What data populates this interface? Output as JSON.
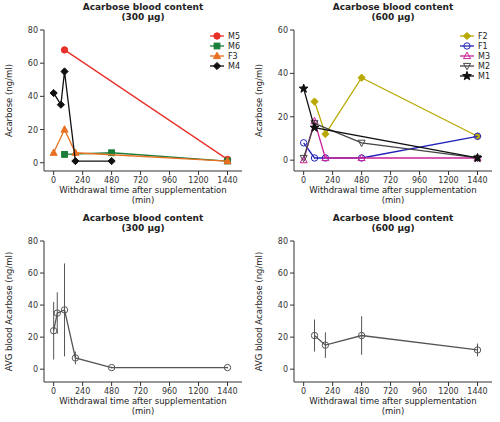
{
  "chart_data": [
    {
      "type": "line",
      "title": "Acarbose blood content\n(300 µg)",
      "x_label": "Withdrawal time after supplementation\n(min)",
      "y_label": "Acarbose (ng/ml)",
      "xlim": [
        -80,
        1560
      ],
      "xticks": [
        0,
        240,
        480,
        720,
        960,
        1200,
        1440
      ],
      "ylim": [
        -5,
        80
      ],
      "yticks": [
        0,
        20,
        40,
        60,
        80
      ],
      "grid": false,
      "legend": "upper right",
      "series": [
        {
          "name": "M5",
          "color": "#e8302a",
          "marker": "circle",
          "x": [
            90,
            1440
          ],
          "values": [
            68,
            2
          ]
        },
        {
          "name": "M6",
          "color": "#1a7d3a",
          "marker": "square",
          "x": [
            90,
            480,
            1440
          ],
          "values": [
            5,
            6,
            1
          ]
        },
        {
          "name": "F3",
          "color": "#e87020",
          "marker": "triangle-up",
          "x": [
            0,
            90,
            180,
            1440
          ],
          "values": [
            6,
            20,
            6,
            1
          ]
        },
        {
          "name": "M4",
          "color": "#111111",
          "marker": "diamond",
          "x": [
            0,
            60,
            90,
            180,
            480
          ],
          "values": [
            42,
            35,
            55,
            1,
            1
          ]
        }
      ]
    },
    {
      "type": "line",
      "title": "Acarbose blood content\n(600 µg)",
      "x_label": "Withdrawal time after supplementation\n(min)",
      "y_label": "Acarbose (ng/ml)",
      "xlim": [
        -80,
        1560
      ],
      "xticks": [
        0,
        240,
        480,
        720,
        960,
        1200,
        1440
      ],
      "ylim": [
        -5,
        60
      ],
      "yticks": [
        0,
        20,
        40,
        60
      ],
      "grid": false,
      "legend": "upper right",
      "series": [
        {
          "name": "F2",
          "color": "#b8a800",
          "marker": "diamond",
          "line_style": "solid",
          "x": [
            90,
            180,
            480,
            1440
          ],
          "values": [
            27,
            12,
            38,
            11
          ]
        },
        {
          "name": "F1",
          "color": "#2222bb",
          "marker": "open-circle",
          "line_style": "solid",
          "x": [
            0,
            90,
            180,
            480,
            1440
          ],
          "values": [
            8,
            1,
            1,
            1,
            11
          ]
        },
        {
          "name": "M3",
          "color": "#cc2299",
          "marker": "open-triangle-up",
          "line_style": "solid",
          "x": [
            0,
            90,
            180,
            480,
            1440
          ],
          "values": [
            0,
            18,
            1,
            1,
            1
          ]
        },
        {
          "name": "M2",
          "color": "#444444",
          "marker": "open-triangle-down",
          "line_style": "solid",
          "x": [
            0,
            90,
            480,
            1440
          ],
          "values": [
            1,
            17,
            8,
            1
          ]
        },
        {
          "name": "M1",
          "color": "#111111",
          "marker": "star",
          "line_style": "solid",
          "x": [
            0,
            90,
            1440
          ],
          "values": [
            33,
            15,
            1
          ]
        }
      ]
    },
    {
      "type": "line",
      "title": "Acarbose blood content\n(300 µg)",
      "x_label": "Withdrawal time after supplementation\n(min)",
      "y_label": "AVG blood Acarbose (ng/ml)",
      "xlim": [
        -80,
        1560
      ],
      "xticks": [
        0,
        240,
        480,
        720,
        960,
        1200,
        1440
      ],
      "ylim": [
        -8,
        80
      ],
      "yticks": [
        0,
        20,
        40,
        60,
        80
      ],
      "grid": false,
      "color": "#555555",
      "marker": "open-circle",
      "x": [
        0,
        30,
        90,
        180,
        480,
        1440
      ],
      "values": [
        24,
        35,
        37,
        7,
        1,
        1
      ],
      "yerr": [
        18,
        13,
        29,
        4,
        0.5,
        0.5
      ]
    },
    {
      "type": "line",
      "title": "Acarbose blood content\n(600 µg)",
      "x_label": "Withdrawal time after supplementation\n(min)",
      "y_label": "AVG blood Acarbose (ng/ml)",
      "xlim": [
        -80,
        1560
      ],
      "xticks": [
        0,
        240,
        480,
        720,
        960,
        1200,
        1440
      ],
      "ylim": [
        -8,
        80
      ],
      "yticks": [
        0,
        20,
        40,
        60,
        80
      ],
      "grid": false,
      "color": "#555555",
      "marker": "open-circle",
      "x": [
        90,
        180,
        480,
        1440
      ],
      "values": [
        21,
        15,
        21,
        12
      ],
      "yerr": [
        10,
        8,
        12,
        4
      ]
    }
  ]
}
